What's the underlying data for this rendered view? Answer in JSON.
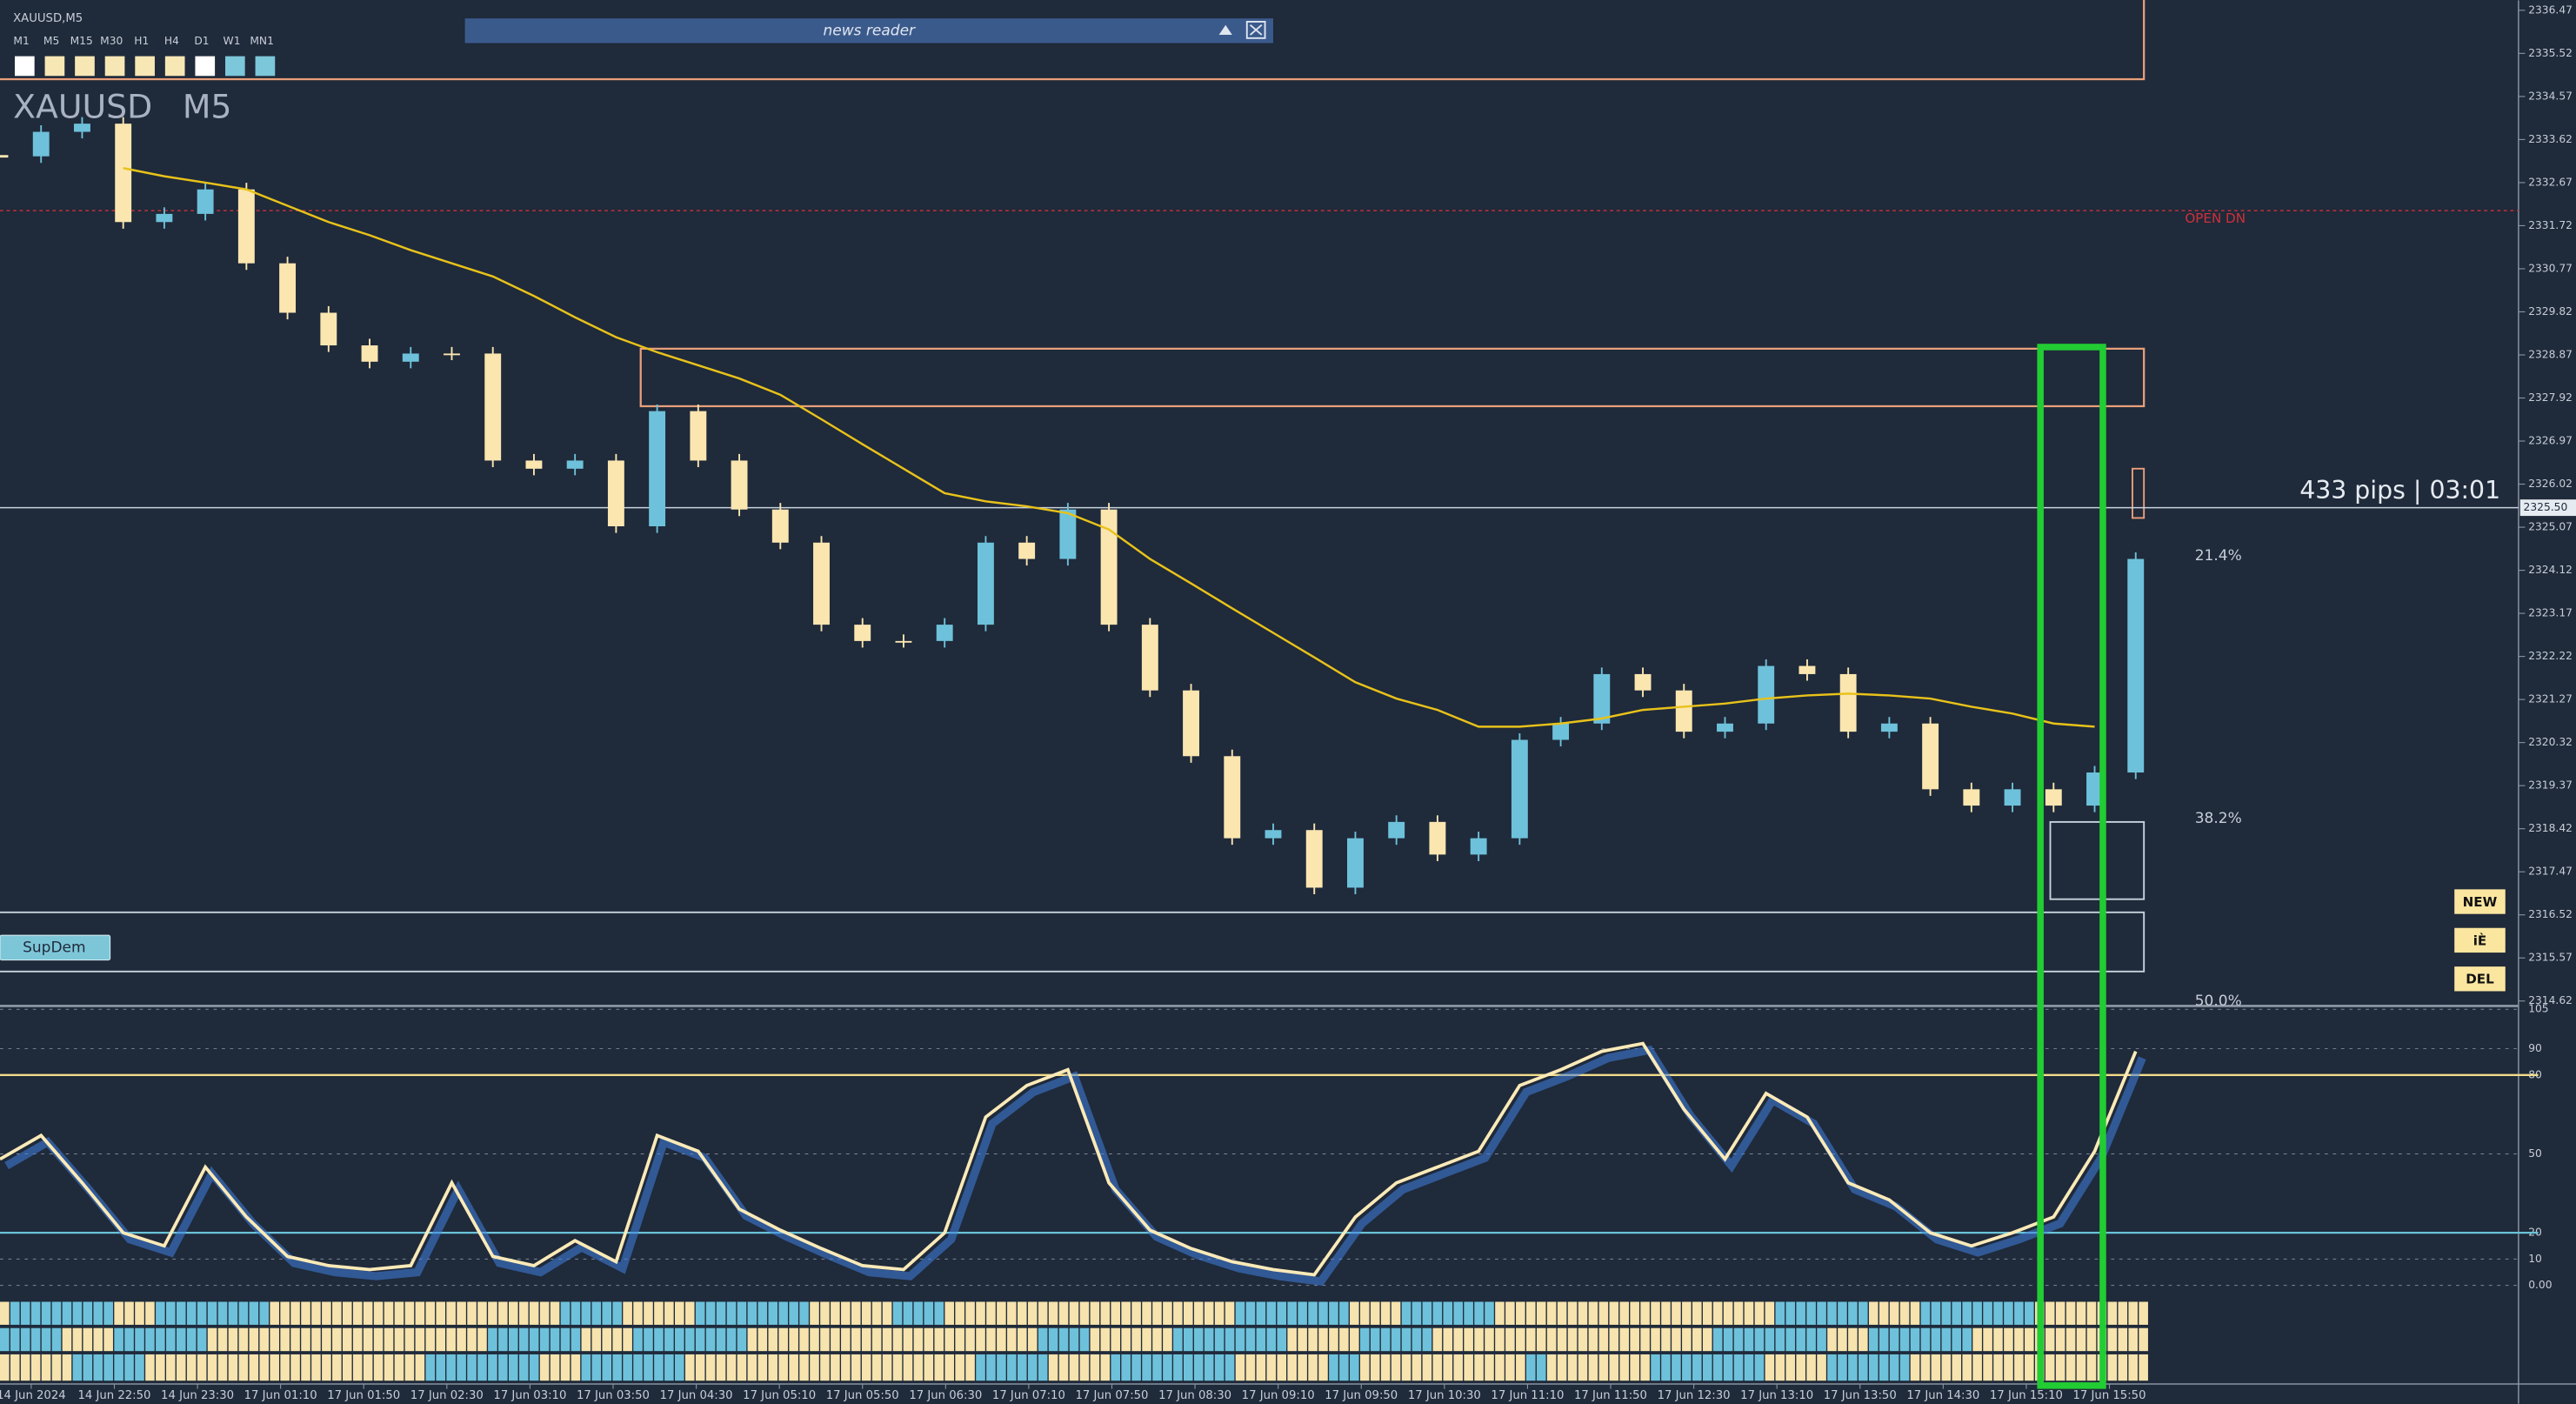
{
  "toolbar": {
    "symbol": "XAUUSD,M5",
    "timeframes": [
      "M1",
      "M5",
      "M15",
      "M30",
      "H1",
      "H4",
      "D1",
      "W1",
      "MN1"
    ],
    "news_reader": "news reader",
    "supdem": "SupDem",
    "buttons": [
      "NEW",
      "iÈ",
      "DEL"
    ]
  },
  "chart_data": [
    {
      "type": "candlestick",
      "title": "XAUUSD M5",
      "x_labels": [
        "14 Jun 2024",
        "14 Jun 22:50",
        "14 Jun 23:30",
        "17 Jun 01:10",
        "17 Jun 01:50",
        "17 Jun 02:30",
        "17 Jun 03:10",
        "17 Jun 03:50",
        "17 Jun 04:30",
        "17 Jun 05:10",
        "17 Jun 05:50",
        "17 Jun 06:30",
        "17 Jun 07:10",
        "17 Jun 07:50",
        "17 Jun 08:30",
        "17 Jun 09:10",
        "17 Jun 09:50",
        "17 Jun 10:30",
        "17 Jun 11:10",
        "17 Jun 11:50",
        "17 Jun 12:30",
        "17 Jun 13:10",
        "17 Jun 13:50",
        "17 Jun 14:30",
        "17 Jun 15:10",
        "17 Jun 15:50"
      ],
      "values": [
        2333.25,
        2333.79,
        2333.97,
        2331.8,
        2331.98,
        2332.52,
        2330.89,
        2329.8,
        2329.08,
        2328.72,
        2328.9,
        2328.9,
        2326.54,
        2326.36,
        2326.54,
        2325.09,
        2327.63,
        2326.54,
        2325.46,
        2324.73,
        2322.92,
        2322.56,
        2322.56,
        2322.92,
        2324.73,
        2324.37,
        2325.46,
        2322.92,
        2321.47,
        2320.02,
        2318.21,
        2318.39,
        2317.12,
        2318.21,
        2318.57,
        2317.85,
        2318.21,
        2320.38,
        2320.74,
        2321.83,
        2321.47,
        2320.56,
        2320.74,
        2322.01,
        2321.83,
        2320.56,
        2320.74,
        2319.29,
        2318.93,
        2319.29,
        2318.93,
        2319.66,
        2324.37
      ],
      "color_up": "#6ec1da",
      "color_down": "#fbe6b0",
      "ma": {
        "color": "#e8c21a",
        "values": [
          null,
          null,
          null,
          2332.99,
          2332.81,
          2332.67,
          2332.52,
          2332.16,
          2331.8,
          2331.51,
          2331.18,
          2330.89,
          2330.6,
          2330.17,
          2329.7,
          2329.26,
          2328.93,
          2328.64,
          2328.35,
          2327.99,
          2327.45,
          2326.9,
          2326.36,
          2325.82,
          2325.64,
          2325.53,
          2325.38,
          2325.02,
          2324.37,
          2323.83,
          2323.28,
          2322.74,
          2322.2,
          2321.65,
          2321.29,
          2321.04,
          2320.67,
          2320.67,
          2320.74,
          2320.85,
          2321.04,
          2321.11,
          2321.18,
          2321.29,
          2321.36,
          2321.4,
          2321.36,
          2321.29,
          2321.11,
          2320.96,
          2320.74,
          2320.67,
          null
        ]
      },
      "ylim": [
        2314.51,
        2336.69
      ],
      "yticks": [
        2336.47,
        2335.52,
        2334.57,
        2333.62,
        2332.67,
        2331.72,
        2330.77,
        2329.82,
        2328.87,
        2327.92,
        2326.97,
        2326.02,
        2325.07,
        2324.12,
        2323.17,
        2322.22,
        2321.27,
        2320.32,
        2319.37,
        2318.42,
        2317.47,
        2316.52,
        2315.57,
        2314.62
      ],
      "current_price": {
        "value": 2325.5,
        "label": "2325.50"
      },
      "annotations": {
        "pips": "433 pips | 03:01",
        "open_dn": "OPEN DN",
        "fib_214": "21.4%",
        "fib_382": "38.2%",
        "fib_500": "50.0%"
      }
    },
    {
      "type": "line",
      "ylim": [
        -5,
        105
      ],
      "yticks": [
        105,
        90,
        80,
        50,
        20,
        10,
        {
          "value": 0,
          "label": "0.00"
        }
      ],
      "levels": [
        {
          "value": 80,
          "color": "#f3dd8a"
        },
        {
          "value": 20,
          "color": "#6ac3d8"
        }
      ],
      "series": [
        {
          "color": "#fbeab8",
          "values": [
            48,
            57,
            39,
            20,
            15,
            45,
            26,
            11,
            7.5,
            6,
            7.5,
            39,
            11,
            7.5,
            17,
            9,
            57,
            51,
            29,
            21,
            14,
            7.5,
            6,
            20,
            64,
            76,
            82,
            39,
            21,
            14,
            9,
            6,
            4,
            26,
            39,
            45,
            51,
            76,
            82,
            89,
            92,
            67,
            48,
            73,
            64,
            39,
            32.5,
            20,
            15,
            20,
            26,
            51,
            89
          ]
        }
      ]
    }
  ]
}
